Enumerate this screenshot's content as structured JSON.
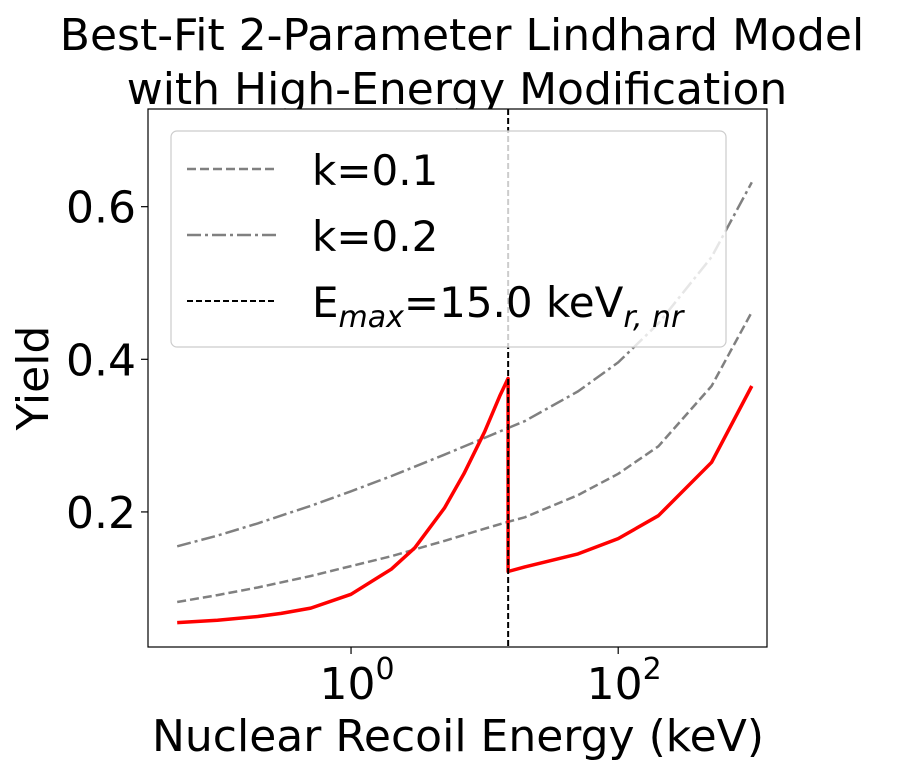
{
  "chart_data": {
    "type": "line",
    "title_lines": [
      "Best-Fit 2-Parameter Lindhard Model",
      "with High-Energy Modification"
    ],
    "xlabel": "Nuclear Recoil Energy (keV)",
    "ylabel": "Yield",
    "x_scale": "log",
    "xlim": [
      0.0302,
      1300
    ],
    "ylim": [
      0.023,
      0.728
    ],
    "x_ticks": [
      {
        "value": 1,
        "base": "10",
        "exp": "0"
      },
      {
        "value": 100,
        "base": "10",
        "exp": "2"
      }
    ],
    "y_ticks": [
      {
        "value": 0.2,
        "label": "0.2"
      },
      {
        "value": 0.4,
        "label": "0.4"
      },
      {
        "value": 0.6,
        "label": "0.6"
      }
    ],
    "grid": false,
    "legend_position": "upper-left",
    "legend": [
      {
        "label": "k=0.1",
        "style": "dashed"
      },
      {
        "label": "k=0.2",
        "style": "dashdot"
      },
      {
        "label_parts": [
          "E",
          "max",
          "=15.0 keV",
          "r, nr"
        ],
        "style": "dashed-black"
      }
    ],
    "series": [
      {
        "name": "k=0.1",
        "color": "#808080",
        "x": [
          0.05,
          0.1,
          0.2,
          0.5,
          1,
          2,
          5,
          10,
          15,
          20,
          50,
          100,
          200,
          500,
          1000
        ],
        "y": [
          0.082,
          0.091,
          0.101,
          0.116,
          0.129,
          0.142,
          0.162,
          0.178,
          0.187,
          0.193,
          0.222,
          0.25,
          0.286,
          0.365,
          0.462
        ]
      },
      {
        "name": "k=0.2",
        "color": "#808080",
        "x": [
          0.05,
          0.1,
          0.2,
          0.5,
          1,
          2,
          5,
          10,
          15,
          20,
          50,
          100,
          200,
          500,
          1000
        ],
        "y": [
          0.155,
          0.169,
          0.185,
          0.208,
          0.227,
          0.247,
          0.275,
          0.297,
          0.31,
          0.319,
          0.358,
          0.396,
          0.447,
          0.534,
          0.632
        ]
      },
      {
        "name": "",
        "color": "#ff0000",
        "x": [
          0.05,
          0.1,
          0.2,
          0.3,
          0.5,
          1,
          2,
          3,
          5,
          7,
          10,
          13,
          15,
          15,
          20,
          50,
          100,
          200,
          500,
          1000
        ],
        "y": [
          0.055,
          0.058,
          0.063,
          0.067,
          0.074,
          0.092,
          0.125,
          0.153,
          0.205,
          0.25,
          0.305,
          0.352,
          0.375,
          0.122,
          0.128,
          0.145,
          0.165,
          0.195,
          0.265,
          0.365
        ]
      }
    ],
    "vline": {
      "x": 15.0,
      "color": "#000000",
      "style": "dashed"
    },
    "colors": {
      "k_curves": "#808080",
      "fit_curve": "#ff0000",
      "vline": "#000000",
      "legend_border": "#cccccc"
    }
  }
}
